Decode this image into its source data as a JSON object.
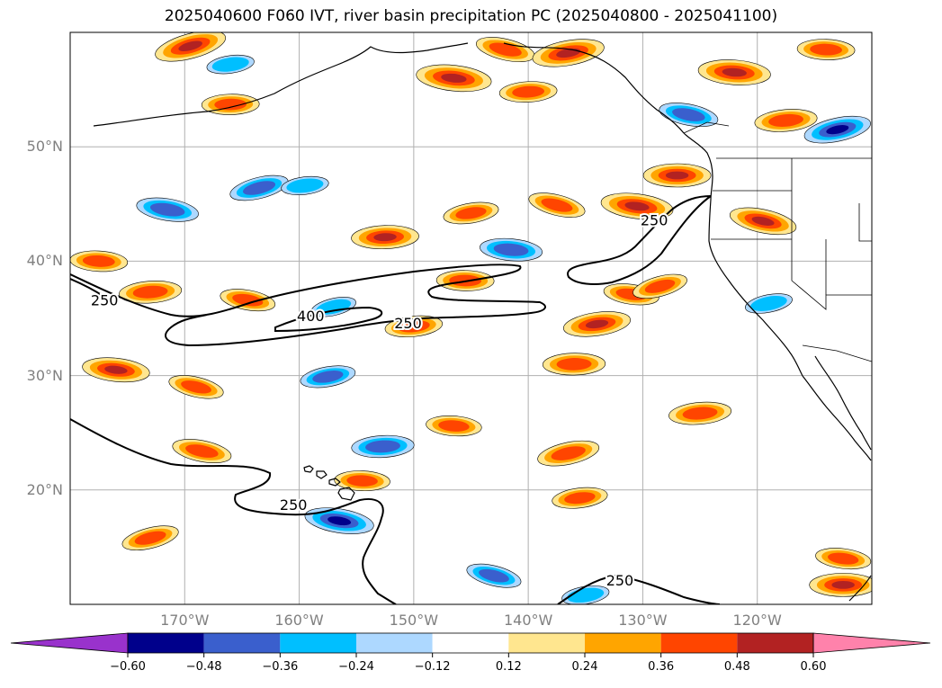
{
  "title": "2025040600 F060 IVT, river basin precipitation PC (2025040800 - 2025041100)",
  "chart_data": {
    "type": "heatmap",
    "title": "2025040600 F060 IVT, river basin precipitation PC (2025040800 - 2025041100)",
    "projection": "PlateCarree",
    "xlim": [
      -180,
      -110
    ],
    "ylim": [
      10,
      60
    ],
    "grid": true,
    "lat_ticks": [
      50,
      40,
      30,
      20
    ],
    "lat_tick_labels": [
      "50°N",
      "40°N",
      "30°N",
      "20°N"
    ],
    "lon_ticks": [
      -170,
      -160,
      -150,
      -140,
      -130,
      -120
    ],
    "lon_tick_labels": [
      "170°W",
      "160°W",
      "150°W",
      "140°W",
      "130°W",
      "120°W"
    ],
    "ivt_contour_labels": [
      {
        "text": "250",
        "lon": -129,
        "lat": 43.5
      },
      {
        "text": "400",
        "lon": -159,
        "lat": 35.1
      },
      {
        "text": "250",
        "lon": -150.5,
        "lat": 34.5
      },
      {
        "text": "250",
        "lon": -177,
        "lat": 36.5
      },
      {
        "text": "250",
        "lon": -160.5,
        "lat": 18.6
      },
      {
        "text": "250",
        "lon": -132,
        "lat": 12
      }
    ],
    "colorbar": {
      "extend": "both",
      "levels": [
        -0.6,
        -0.48,
        -0.36,
        -0.24,
        -0.12,
        0.12,
        0.24,
        0.36,
        0.48,
        0.6
      ],
      "tick_labels": [
        "−0.60",
        "−0.48",
        "−0.36",
        "−0.24",
        "−0.12",
        "0.12",
        "0.24",
        "0.36",
        "0.48",
        "0.60"
      ],
      "colors": [
        "#9932cc",
        "#00008b",
        "#3a5fcd",
        "#00bfff",
        "#add8ff",
        "#ffffff",
        "#ffe68f",
        "#ffa500",
        "#ff4500",
        "#b22222",
        "#ff82ab"
      ]
    },
    "precip_areas": [
      {
        "lon": -169.5,
        "lat": 58.8,
        "value": 0.55
      },
      {
        "lon": -166,
        "lat": 57.2,
        "value": -0.3
      },
      {
        "lon": -166,
        "lat": 53.7,
        "value": 0.4
      },
      {
        "lon": -146.5,
        "lat": 56.0,
        "value": 0.58
      },
      {
        "lon": -142,
        "lat": 58.5,
        "value": 0.42
      },
      {
        "lon": -136.5,
        "lat": 58.2,
        "value": 0.55
      },
      {
        "lon": -140,
        "lat": 54.8,
        "value": 0.4
      },
      {
        "lon": -122,
        "lat": 56.5,
        "value": 0.55
      },
      {
        "lon": -126,
        "lat": 52.8,
        "value": -0.42
      },
      {
        "lon": -113,
        "lat": 51.5,
        "value": -0.5
      },
      {
        "lon": -117.5,
        "lat": 52.3,
        "value": 0.45
      },
      {
        "lon": -114,
        "lat": 58.5,
        "value": 0.4
      },
      {
        "lon": -171.5,
        "lat": 44.5,
        "value": -0.45
      },
      {
        "lon": -163.5,
        "lat": 46.4,
        "value": -0.42
      },
      {
        "lon": -159.5,
        "lat": 46.6,
        "value": -0.3
      },
      {
        "lon": -127,
        "lat": 47.5,
        "value": 0.5
      },
      {
        "lon": -130.5,
        "lat": 44.8,
        "value": 0.55
      },
      {
        "lon": -137.5,
        "lat": 44.9,
        "value": 0.4
      },
      {
        "lon": -145,
        "lat": 44.2,
        "value": 0.38
      },
      {
        "lon": -152.5,
        "lat": 42.1,
        "value": 0.5
      },
      {
        "lon": -141.5,
        "lat": 41.0,
        "value": -0.45
      },
      {
        "lon": -119.5,
        "lat": 43.5,
        "value": 0.5
      },
      {
        "lon": -119,
        "lat": 36.3,
        "value": -0.3
      },
      {
        "lon": -173,
        "lat": 37.3,
        "value": 0.45
      },
      {
        "lon": -177.5,
        "lat": 40.0,
        "value": 0.4
      },
      {
        "lon": -164.5,
        "lat": 36.6,
        "value": 0.38
      },
      {
        "lon": -157,
        "lat": 36.0,
        "value": -0.28
      },
      {
        "lon": -150,
        "lat": 34.3,
        "value": 0.4
      },
      {
        "lon": -145.5,
        "lat": 38.3,
        "value": 0.4
      },
      {
        "lon": -131,
        "lat": 37.1,
        "value": 0.38
      },
      {
        "lon": -128.5,
        "lat": 37.8,
        "value": 0.38
      },
      {
        "lon": -134,
        "lat": 34.5,
        "value": 0.5
      },
      {
        "lon": -136,
        "lat": 31.0,
        "value": 0.45
      },
      {
        "lon": -176,
        "lat": 30.5,
        "value": 0.5
      },
      {
        "lon": -169,
        "lat": 29.0,
        "value": 0.38
      },
      {
        "lon": -157.5,
        "lat": 29.9,
        "value": -0.38
      },
      {
        "lon": -152.7,
        "lat": 23.8,
        "value": -0.45
      },
      {
        "lon": -146.5,
        "lat": 25.6,
        "value": 0.38
      },
      {
        "lon": -168.5,
        "lat": 23.4,
        "value": 0.42
      },
      {
        "lon": -136.5,
        "lat": 23.2,
        "value": 0.45
      },
      {
        "lon": -125,
        "lat": 26.7,
        "value": 0.45
      },
      {
        "lon": -154.5,
        "lat": 20.8,
        "value": 0.38
      },
      {
        "lon": -156.5,
        "lat": 17.3,
        "value": -0.52
      },
      {
        "lon": -173,
        "lat": 15.8,
        "value": 0.4
      },
      {
        "lon": -135.5,
        "lat": 19.3,
        "value": 0.38
      },
      {
        "lon": -112.5,
        "lat": 11.7,
        "value": 0.5
      },
      {
        "lon": -112.5,
        "lat": 14.0,
        "value": 0.38
      },
      {
        "lon": -143,
        "lat": 12.5,
        "value": -0.38
      },
      {
        "lon": -135,
        "lat": 10.8,
        "value": -0.3
      }
    ]
  }
}
